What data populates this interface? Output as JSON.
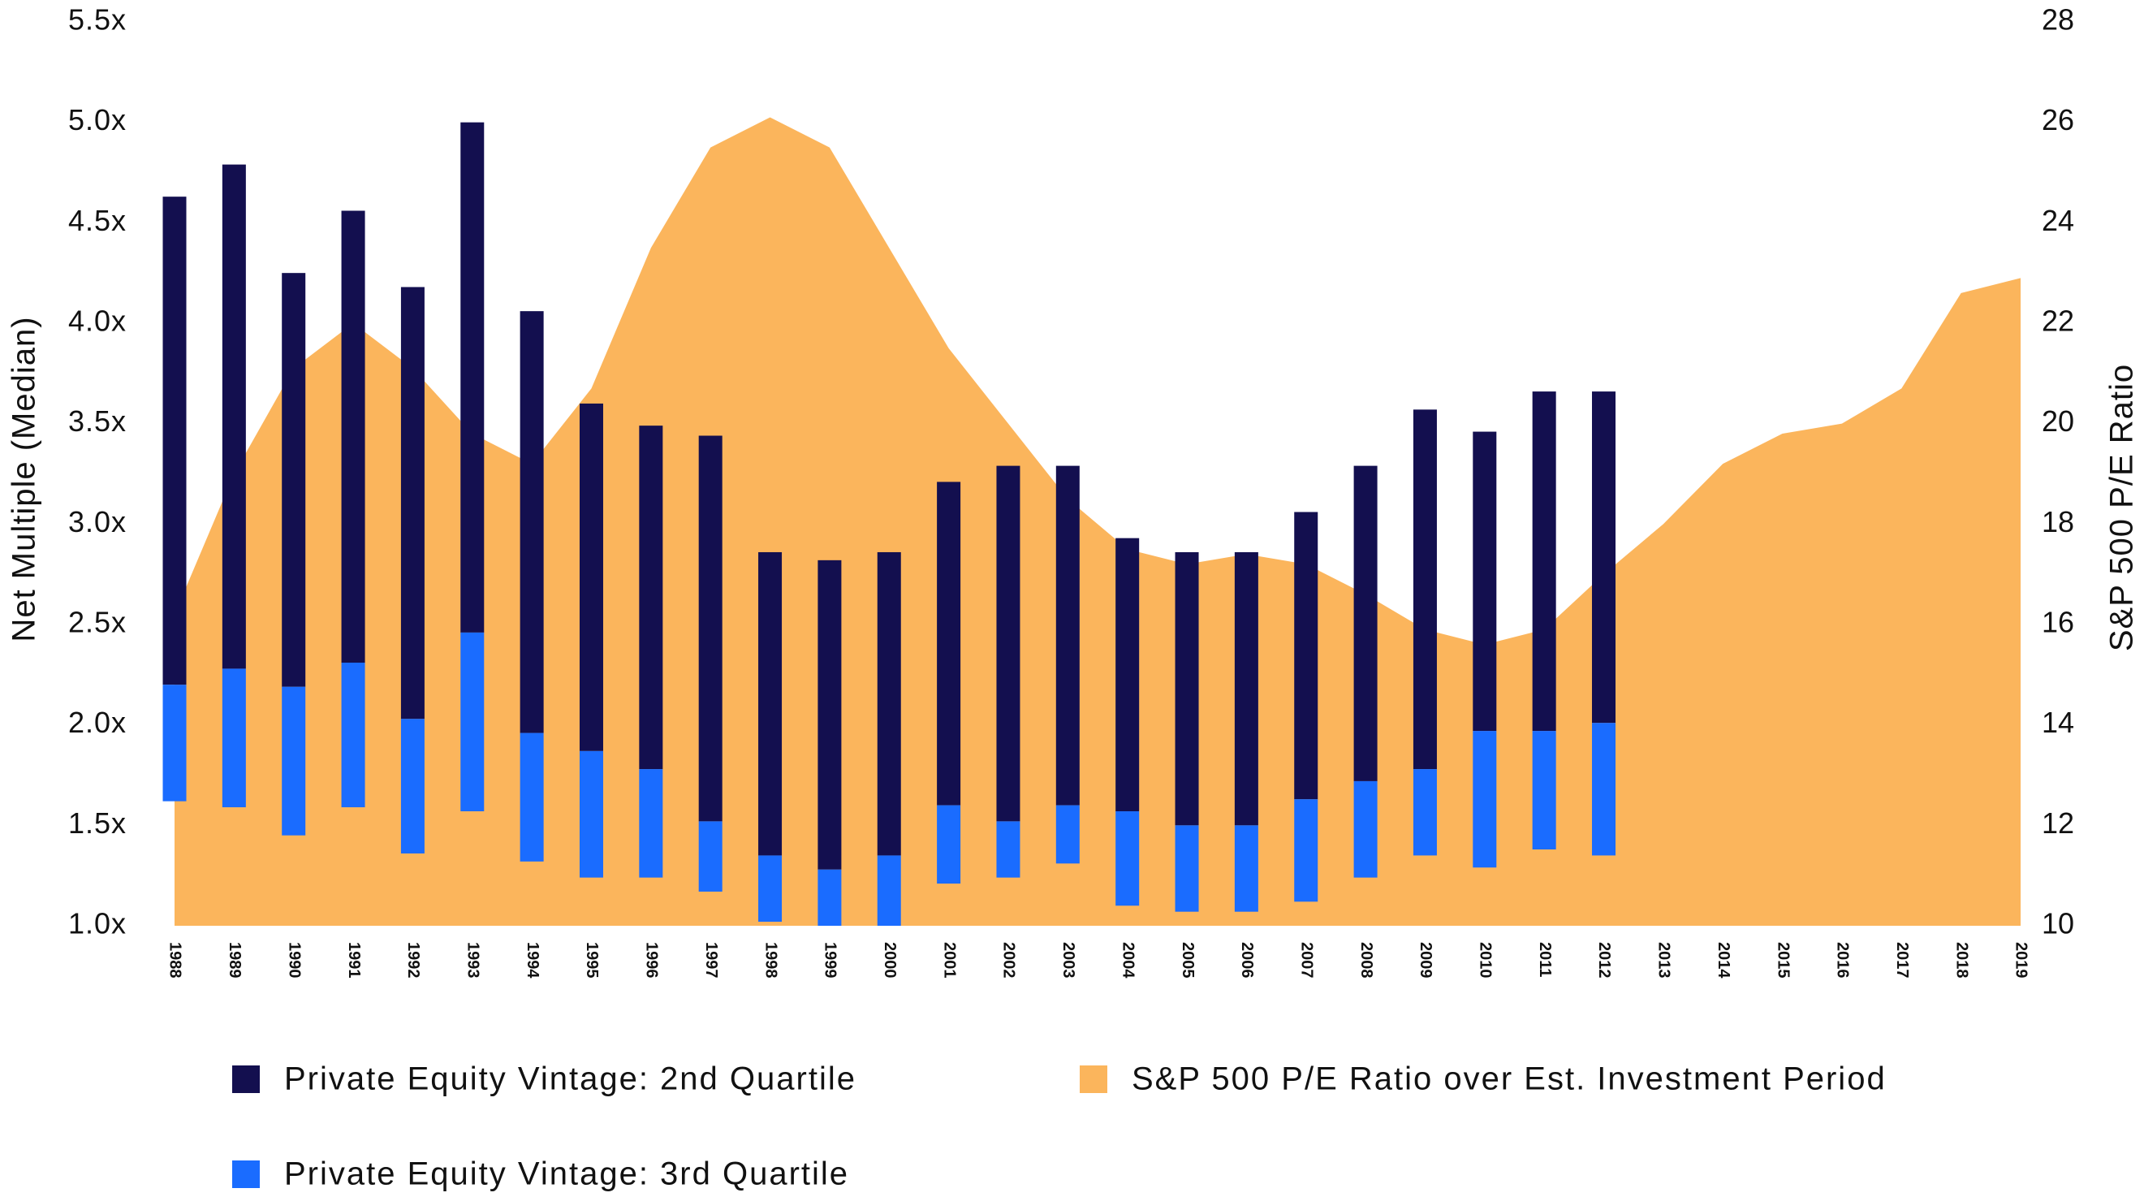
{
  "chart_data": {
    "type": "bar",
    "categories": [
      "1988",
      "1989",
      "1990",
      "1991",
      "1992",
      "1993",
      "1994",
      "1995",
      "1996",
      "1997",
      "1998",
      "1999",
      "2000",
      "2001",
      "2002",
      "2003",
      "2004",
      "2005",
      "2006",
      "2007",
      "2008",
      "2009",
      "2010",
      "2011",
      "2012",
      "2013",
      "2014",
      "2015",
      "2016",
      "2017",
      "2018",
      "2019"
    ],
    "series": [
      {
        "name": "Private Equity Vintage: 2nd Quartile",
        "type": "bar",
        "color": "#130f4f",
        "starts": [
          2.2,
          2.28,
          2.19,
          2.31,
          2.03,
          2.46,
          1.96,
          1.87,
          1.78,
          1.52,
          1.35,
          1.28,
          1.35,
          1.6,
          1.52,
          1.6,
          1.57,
          1.5,
          1.5,
          1.63,
          1.72,
          1.78,
          1.97,
          1.97,
          2.01,
          null,
          null,
          null,
          null,
          null,
          null,
          null
        ],
        "values": [
          4.63,
          4.79,
          4.25,
          4.56,
          4.18,
          5.0,
          4.06,
          3.6,
          3.49,
          3.44,
          2.86,
          2.82,
          2.86,
          3.21,
          3.29,
          3.29,
          2.93,
          2.86,
          2.86,
          3.06,
          3.29,
          3.57,
          3.46,
          3.66,
          3.66,
          null,
          null,
          null,
          null,
          null,
          null,
          null
        ]
      },
      {
        "name": "Private Equity Vintage: 3rd Quartile",
        "type": "bar",
        "color": "#1a6cff",
        "starts": [
          1.62,
          1.59,
          1.45,
          1.59,
          1.36,
          1.57,
          1.32,
          1.24,
          1.24,
          1.17,
          1.02,
          1.0,
          1.0,
          1.21,
          1.24,
          1.31,
          1.1,
          1.07,
          1.07,
          1.12,
          1.24,
          1.35,
          1.29,
          1.38,
          1.35,
          null,
          null,
          null,
          null,
          null,
          null,
          null
        ],
        "values": [
          2.2,
          2.28,
          2.19,
          2.31,
          2.03,
          2.46,
          1.96,
          1.87,
          1.78,
          1.52,
          1.35,
          1.28,
          1.35,
          1.6,
          1.52,
          1.6,
          1.57,
          1.5,
          1.5,
          1.63,
          1.72,
          1.78,
          1.97,
          1.97,
          2.01,
          null,
          null,
          null,
          null,
          null,
          null,
          null
        ]
      },
      {
        "name": "S&P 500 P/E Ratio over Est. Investment Period",
        "type": "area",
        "axis": "y2",
        "color": "#fbb55c",
        "values": [
          16.2,
          19.0,
          21.1,
          22.0,
          21.1,
          19.8,
          19.2,
          20.7,
          23.5,
          25.5,
          26.1,
          25.5,
          23.5,
          21.5,
          20.0,
          18.5,
          17.5,
          17.2,
          17.4,
          17.2,
          16.6,
          15.9,
          15.6,
          15.9,
          17.0,
          18.0,
          19.2,
          19.8,
          20.0,
          20.7,
          22.6,
          22.9
        ]
      }
    ],
    "y_label": "Net Multiple (Median)",
    "y2_label": "S&P 500 P/E Ratio",
    "ylim": [
      1.0,
      5.5
    ],
    "yticks": [
      {
        "value": 1.0,
        "label": "1.0x"
      },
      {
        "value": 1.5,
        "label": "1.5x"
      },
      {
        "value": 2.0,
        "label": "2.0x"
      },
      {
        "value": 2.5,
        "label": "2.5x"
      },
      {
        "value": 3.0,
        "label": "3.0x"
      },
      {
        "value": 3.5,
        "label": "3.5x"
      },
      {
        "value": 4.0,
        "label": "4.0x"
      },
      {
        "value": 4.5,
        "label": "4.5x"
      },
      {
        "value": 5.0,
        "label": "5.0x"
      },
      {
        "value": 5.5,
        "label": "5.5x"
      }
    ],
    "y2lim": [
      10,
      28
    ],
    "y2ticks": [
      10,
      12,
      14,
      16,
      18,
      20,
      22,
      24,
      26,
      28
    ],
    "legend": "bottom"
  }
}
